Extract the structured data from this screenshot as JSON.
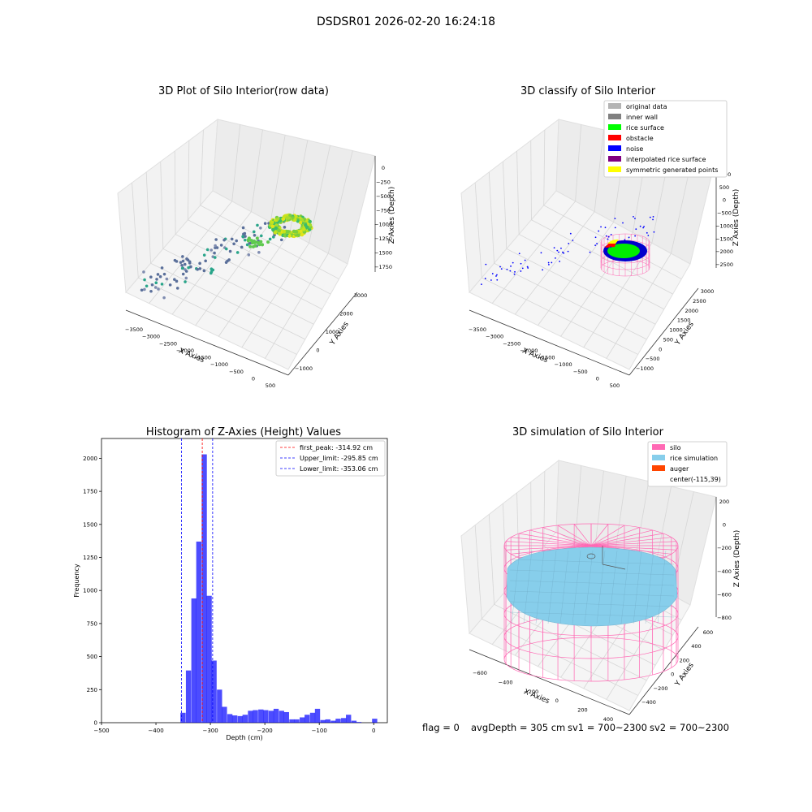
{
  "suptitle": "DSDSR01 2026-02-20 16:24:18",
  "footer": {
    "flag": "flag = 0",
    "avg_depth": "avgDepth = 305 cm",
    "sv1": "sv1 = 700~2300",
    "sv2": "sv2 = 700~2300"
  },
  "chart_data": [
    {
      "type": "scatter",
      "title": "3D Plot of Silo Interior(row data)",
      "xlabel": "X Axies",
      "ylabel": "Y Axies",
      "zlabel": "Z Axies (Depth)",
      "x_ticks": [
        "−3500",
        "−3000",
        "−2500",
        "−2000",
        "−1500",
        "−1000",
        "−500",
        "0",
        "500"
      ],
      "y_ticks": [
        "−1000",
        "0",
        "1000",
        "2000",
        "3000"
      ],
      "z_ticks": [
        "0",
        "−250",
        "−500",
        "−750",
        "−1000",
        "−1250",
        "−1500",
        "−1750"
      ],
      "grid": true
    },
    {
      "type": "scatter",
      "title": "3D classify of Silo Interior",
      "xlabel": "X Axies",
      "ylabel": "Y Axies",
      "zlabel": "Z Axies (Depth)",
      "x_ticks": [
        "−3500",
        "−3000",
        "−2500",
        "−2000",
        "−1500",
        "−1000",
        "−500",
        "0",
        "500"
      ],
      "y_ticks": [
        "−1000",
        "−500",
        "0",
        "500",
        "1000",
        "1500",
        "2000",
        "2500",
        "3000"
      ],
      "z_ticks": [
        "1000",
        "500",
        "0",
        "−500",
        "−1000",
        "−1500",
        "−2000",
        "−2500"
      ],
      "legend": [
        {
          "label": "original data",
          "color": "#b4b4b4"
        },
        {
          "label": "inner wall",
          "color": "#808080"
        },
        {
          "label": "rice surface",
          "color": "#00ff00"
        },
        {
          "label": "obstacle",
          "color": "#ff0000"
        },
        {
          "label": "noise",
          "color": "#0000ff"
        },
        {
          "label": "interpolated rice surface",
          "color": "#800080"
        },
        {
          "label": "symmetric generated points",
          "color": "#ffff00"
        }
      ],
      "legend_position": "top-right",
      "grid": true
    },
    {
      "type": "bar",
      "title": "Histogram of Z-Axies (Height) Values",
      "xlabel": "Depth (cm)",
      "ylabel": "Frequency",
      "xlim": [
        -500,
        25
      ],
      "ylim": [
        0,
        2150
      ],
      "x_ticks": [
        -500,
        -400,
        -300,
        -200,
        -100,
        0
      ],
      "x_tick_labels": [
        "−500",
        "−400",
        "−300",
        "−200",
        "−100",
        "0"
      ],
      "y_ticks": [
        0,
        250,
        500,
        750,
        1000,
        1250,
        1500,
        1750,
        2000
      ],
      "bin_width": 9.5,
      "bins": [
        [
          -355,
          75
        ],
        [
          -345,
          395
        ],
        [
          -335,
          940
        ],
        [
          -326,
          1370
        ],
        [
          -316,
          2030
        ],
        [
          -307,
          960
        ],
        [
          -298,
          470
        ],
        [
          -288,
          250
        ],
        [
          -279,
          120
        ],
        [
          -269,
          65
        ],
        [
          -260,
          55
        ],
        [
          -250,
          50
        ],
        [
          -241,
          60
        ],
        [
          -231,
          90
        ],
        [
          -222,
          95
        ],
        [
          -212,
          100
        ],
        [
          -203,
          95
        ],
        [
          -193,
          90
        ],
        [
          -184,
          105
        ],
        [
          -174,
          90
        ],
        [
          -165,
          80
        ],
        [
          -155,
          25
        ],
        [
          -146,
          25
        ],
        [
          -136,
          40
        ],
        [
          -127,
          60
        ],
        [
          -117,
          75
        ],
        [
          -108,
          105
        ],
        [
          -98,
          20
        ],
        [
          -89,
          25
        ],
        [
          -79,
          15
        ],
        [
          -70,
          30
        ],
        [
          -60,
          35
        ],
        [
          -51,
          60
        ],
        [
          -41,
          15
        ],
        [
          -32,
          5
        ],
        [
          -3,
          30
        ]
      ],
      "bar_color": "#0000ff",
      "series": [
        {
          "name": "first_peak: -314.92 cm",
          "value": -314.92,
          "color": "#ff0000",
          "style": "dashed"
        },
        {
          "name": "Upper_limit: -295.85 cm",
          "value": -295.85,
          "color": "#0000ff",
          "style": "dashed"
        },
        {
          "name": "Lower_limit: -353.06 cm",
          "value": -353.06,
          "color": "#0000ff",
          "style": "dashed"
        }
      ],
      "legend_position": "top-right",
      "grid": false
    },
    {
      "type": "scatter",
      "title": "3D simulation of Silo Interior",
      "xlabel": "X Axies",
      "ylabel": "Y Axies",
      "zlabel": "Z Axies (Depth)",
      "x_ticks": [
        "−600",
        "−400",
        "−200",
        "0",
        "200",
        "400"
      ],
      "y_ticks": [
        "−400",
        "−200",
        "0",
        "200",
        "400",
        "600"
      ],
      "z_ticks": [
        "200",
        "0",
        "−200",
        "−400",
        "−600",
        "−800"
      ],
      "legend": [
        {
          "label": "silo",
          "color": "#ff69b4"
        },
        {
          "label": "rice simulation",
          "color": "#87ceeb"
        },
        {
          "label": "auger",
          "color": "#ff4500"
        },
        {
          "label": "center(-115,39)",
          "color": "none"
        }
      ],
      "legend_position": "top-right",
      "grid": true
    }
  ]
}
